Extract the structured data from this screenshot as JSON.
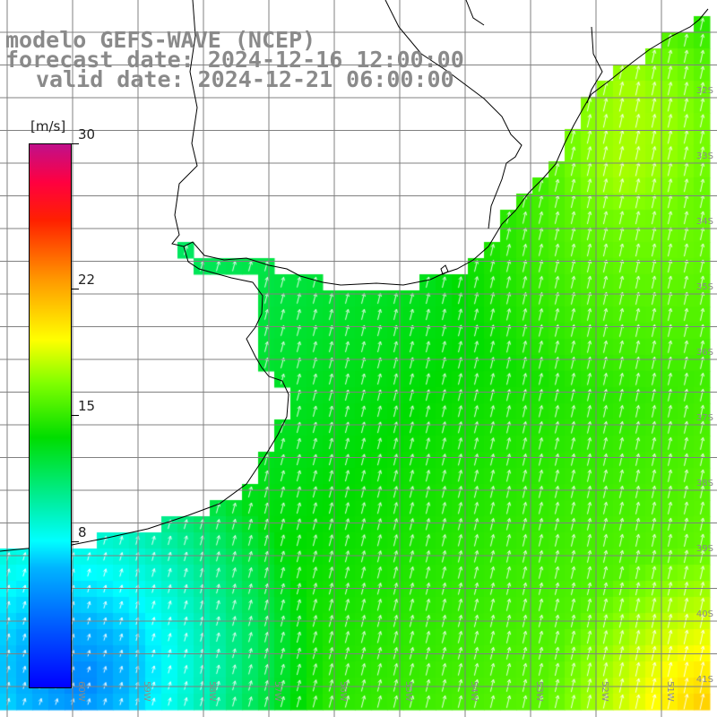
{
  "title": {
    "model": "modelo GEFS-WAVE (NCEP)",
    "forecast": "forecast date: 2024-12-16 12:00:00",
    "valid": "valid date: 2024-12-21 06:00:00"
  },
  "colorbar": {
    "unit": "[m/s]",
    "min": 0,
    "max": 30,
    "labels": [
      "30",
      "22",
      "15",
      "8"
    ],
    "label_values": [
      30,
      22,
      15,
      8
    ]
  },
  "map": {
    "lat_labels": [
      "32S",
      "33S",
      "34S",
      "35S",
      "36S",
      "37S",
      "38S",
      "39S",
      "40S",
      "41S"
    ],
    "lon_labels": [
      "60W",
      "59W",
      "58W",
      "57W",
      "56W",
      "55W",
      "54W",
      "53W",
      "52W",
      "51W"
    ],
    "region": "Rio de la Plata / SW Atlantic",
    "wind_direction": "from south-southwest",
    "colors": {
      "land": "#ffffff",
      "coast": "#000000",
      "grid": "#808080",
      "vectors": "#ffffff"
    }
  }
}
